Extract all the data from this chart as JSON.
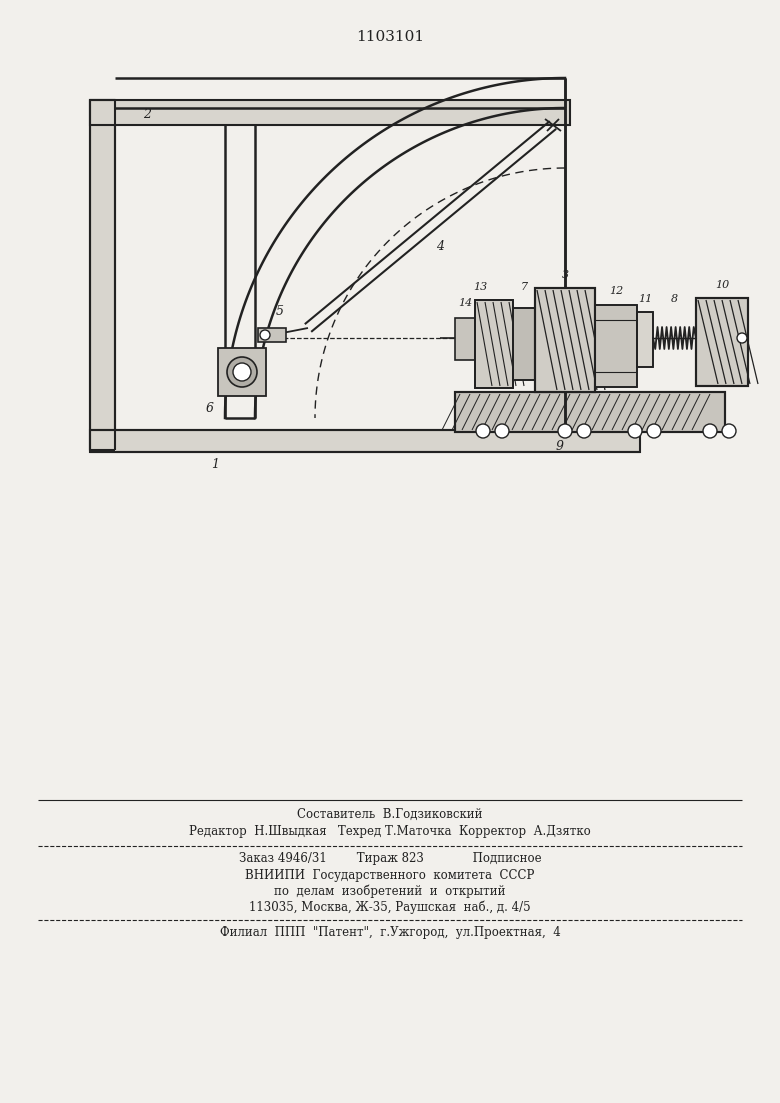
{
  "patent_number": "1103101",
  "background_color": "#f2f0ec",
  "line_color": "#222222",
  "title_fontsize": 11,
  "label_fontsize": 9,
  "footer_lines": [
    "Составитель  В.Годзиковский",
    "Редактор  Н.Швыдкая   Техред Т.Маточка  Корректор  А.Дзятко",
    "Заказ 4946/31        Тираж 823             Подписное",
    "ВНИИПИ  Государственного  комитета  СССР",
    "по  делам  изобретений  и  открытий",
    "113035, Москва, Ж-35, Раушская  наб., д. 4/5",
    "Филиал  ППП  \"Патент\",  г.Ужгород,  ул.Проектная,  4"
  ]
}
